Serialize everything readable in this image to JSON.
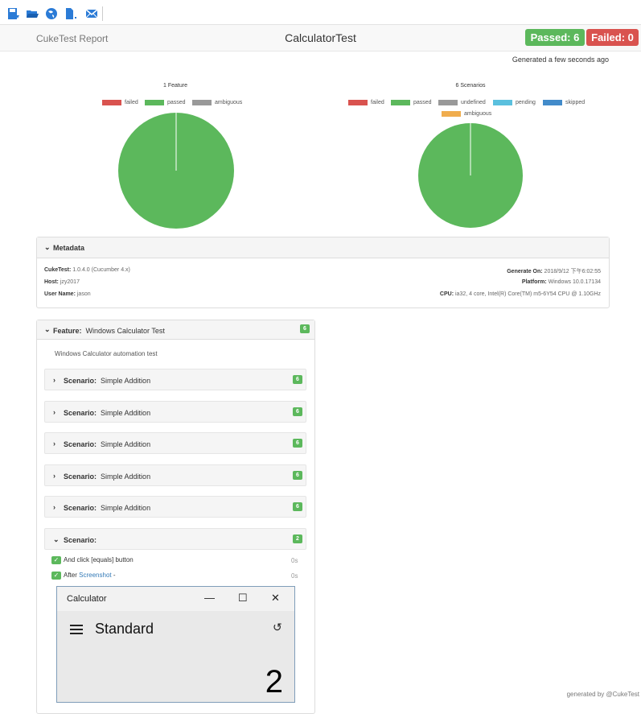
{
  "toolbar": {
    "icons": [
      "save-icon",
      "open-folder-icon",
      "globe-icon",
      "document-dropdown-icon",
      "email-icon"
    ]
  },
  "navbar": {
    "brand": "CukeTest Report",
    "title": "CalculatorTest",
    "passed": "Passed: 6",
    "failed": "Failed: 0"
  },
  "generated": "Generated a few seconds ago",
  "features_chart": {
    "title": "1 Feature",
    "legend": [
      {
        "label": "failed",
        "color": "#d9534f"
      },
      {
        "label": "passed",
        "color": "#5cb85c"
      },
      {
        "label": "ambiguous",
        "color": "#999999"
      }
    ]
  },
  "scenarios_chart": {
    "title": "6 Scenarios",
    "legend": [
      {
        "label": "failed",
        "color": "#d9534f"
      },
      {
        "label": "passed",
        "color": "#5cb85c"
      },
      {
        "label": "undefined",
        "color": "#999999"
      },
      {
        "label": "pending",
        "color": "#5bc0de"
      },
      {
        "label": "skipped",
        "color": "#428bca"
      },
      {
        "label": "ambiguous",
        "color": "#f0ad4e"
      }
    ]
  },
  "metadata": {
    "title": "Metadata",
    "cuketest_label": "CukeTest:",
    "cuketest_value": "1.0.4.0 (Cucumber 4.x)",
    "host_label": "Host:",
    "host_value": "jzy2017",
    "user_label": "User Name:",
    "user_value": "jason",
    "gen_label": "Generate On:",
    "gen_value": "2018/9/12 下午6:02:55",
    "platform_label": "Platform:",
    "platform_value": "Windows 10.0.17134",
    "cpu_label": "CPU:",
    "cpu_value": "ia32, 4 core, Intel(R) Core(TM) m5-6Y54 CPU @ 1.10GHz"
  },
  "feature": {
    "keyword": "Feature:",
    "name": "Windows Calculator Test",
    "count": "6",
    "description": "Windows Calculator automation test",
    "scenarios": [
      {
        "keyword": "Scenario:",
        "name": "Simple Addition",
        "count": "6"
      },
      {
        "keyword": "Scenario:",
        "name": "Simple Addition",
        "count": "6"
      },
      {
        "keyword": "Scenario:",
        "name": "Simple Addition",
        "count": "6"
      },
      {
        "keyword": "Scenario:",
        "name": "Simple Addition",
        "count": "6"
      },
      {
        "keyword": "Scenario:",
        "name": "Simple Addition",
        "count": "6"
      }
    ],
    "open_scenario": {
      "keyword": "Scenario:",
      "count": "2"
    }
  },
  "steps": [
    {
      "text": "And click [equals] button",
      "time": "0s"
    },
    {
      "prefix": "After",
      "link": "Screenshot",
      "suffix": "-",
      "time": "0s"
    }
  ],
  "calculator": {
    "caption": "Calculator",
    "mode": "Standard",
    "display": "2",
    "minimize": "—",
    "maximize": "☐",
    "close": "✕",
    "history_icon": "↺"
  },
  "footer": "generated by @CukeTest"
}
